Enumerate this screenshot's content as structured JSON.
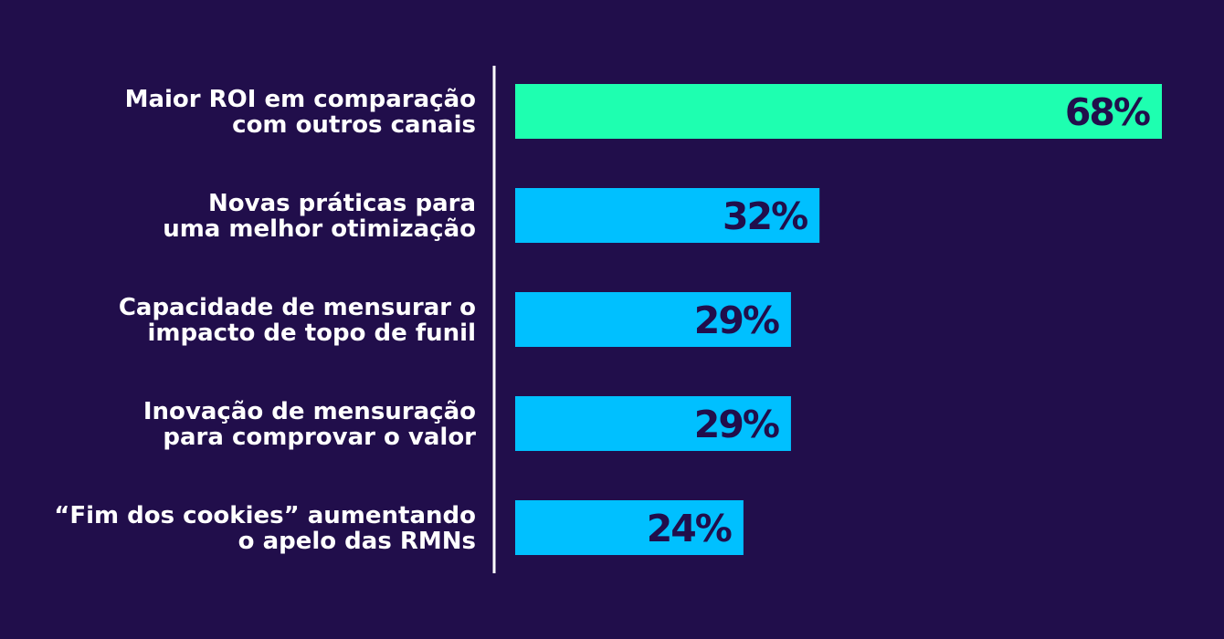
{
  "chart_data": {
    "type": "bar",
    "orientation": "horizontal",
    "categories": [
      [
        "Maior ROI em comparação",
        "com outros canais"
      ],
      [
        "Novas práticas para",
        "uma melhor otimização"
      ],
      [
        "Capacidade de mensurar o",
        "impacto de topo de funil"
      ],
      [
        "Inovação de mensuração",
        "para comprovar o valor"
      ],
      [
        "“Fim dos cookies” aumentando",
        "o apelo das RMNs"
      ]
    ],
    "values": [
      68,
      32,
      29,
      29,
      24
    ],
    "value_labels": [
      "68%",
      "32%",
      "29%",
      "29%",
      "24%"
    ],
    "xlim": [
      0,
      68
    ],
    "grid": false,
    "legend": "none",
    "colors": {
      "background": "#210e4b",
      "highlight_bar": "#1effb0",
      "bar": "#00c0ff",
      "value_text": "#210e4b",
      "category_text": "#ffffff",
      "axis_line": "#ffffff"
    }
  }
}
